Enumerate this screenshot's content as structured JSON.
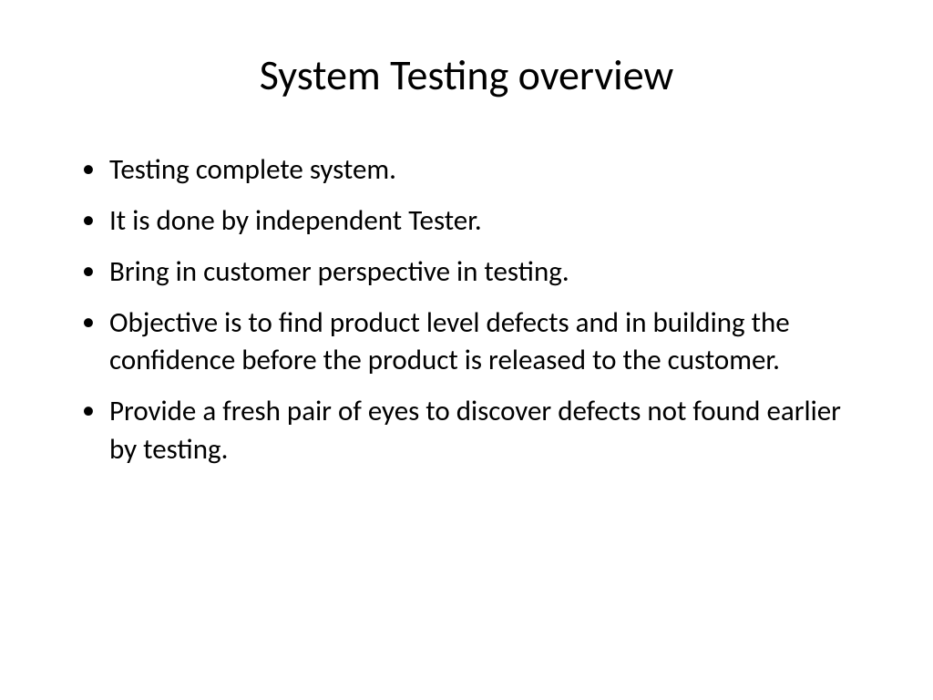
{
  "slide": {
    "title": "System Testing overview",
    "title_fontsize": 46,
    "title_color": "#000000",
    "title_align": "center",
    "background_color": "#ffffff",
    "bullets": [
      "Testing complete system.",
      "It is done by independent Tester.",
      "Bring in customer perspective in testing.",
      "Objective is to find product level defects and in building the confidence before the product is released to the customer.",
      "Provide a fresh pair of eyes to discover defects not found earlier by testing."
    ],
    "bullet_fontsize": 31,
    "bullet_color": "#000000",
    "bullet_marker": "•",
    "font_family": "Calibri"
  }
}
